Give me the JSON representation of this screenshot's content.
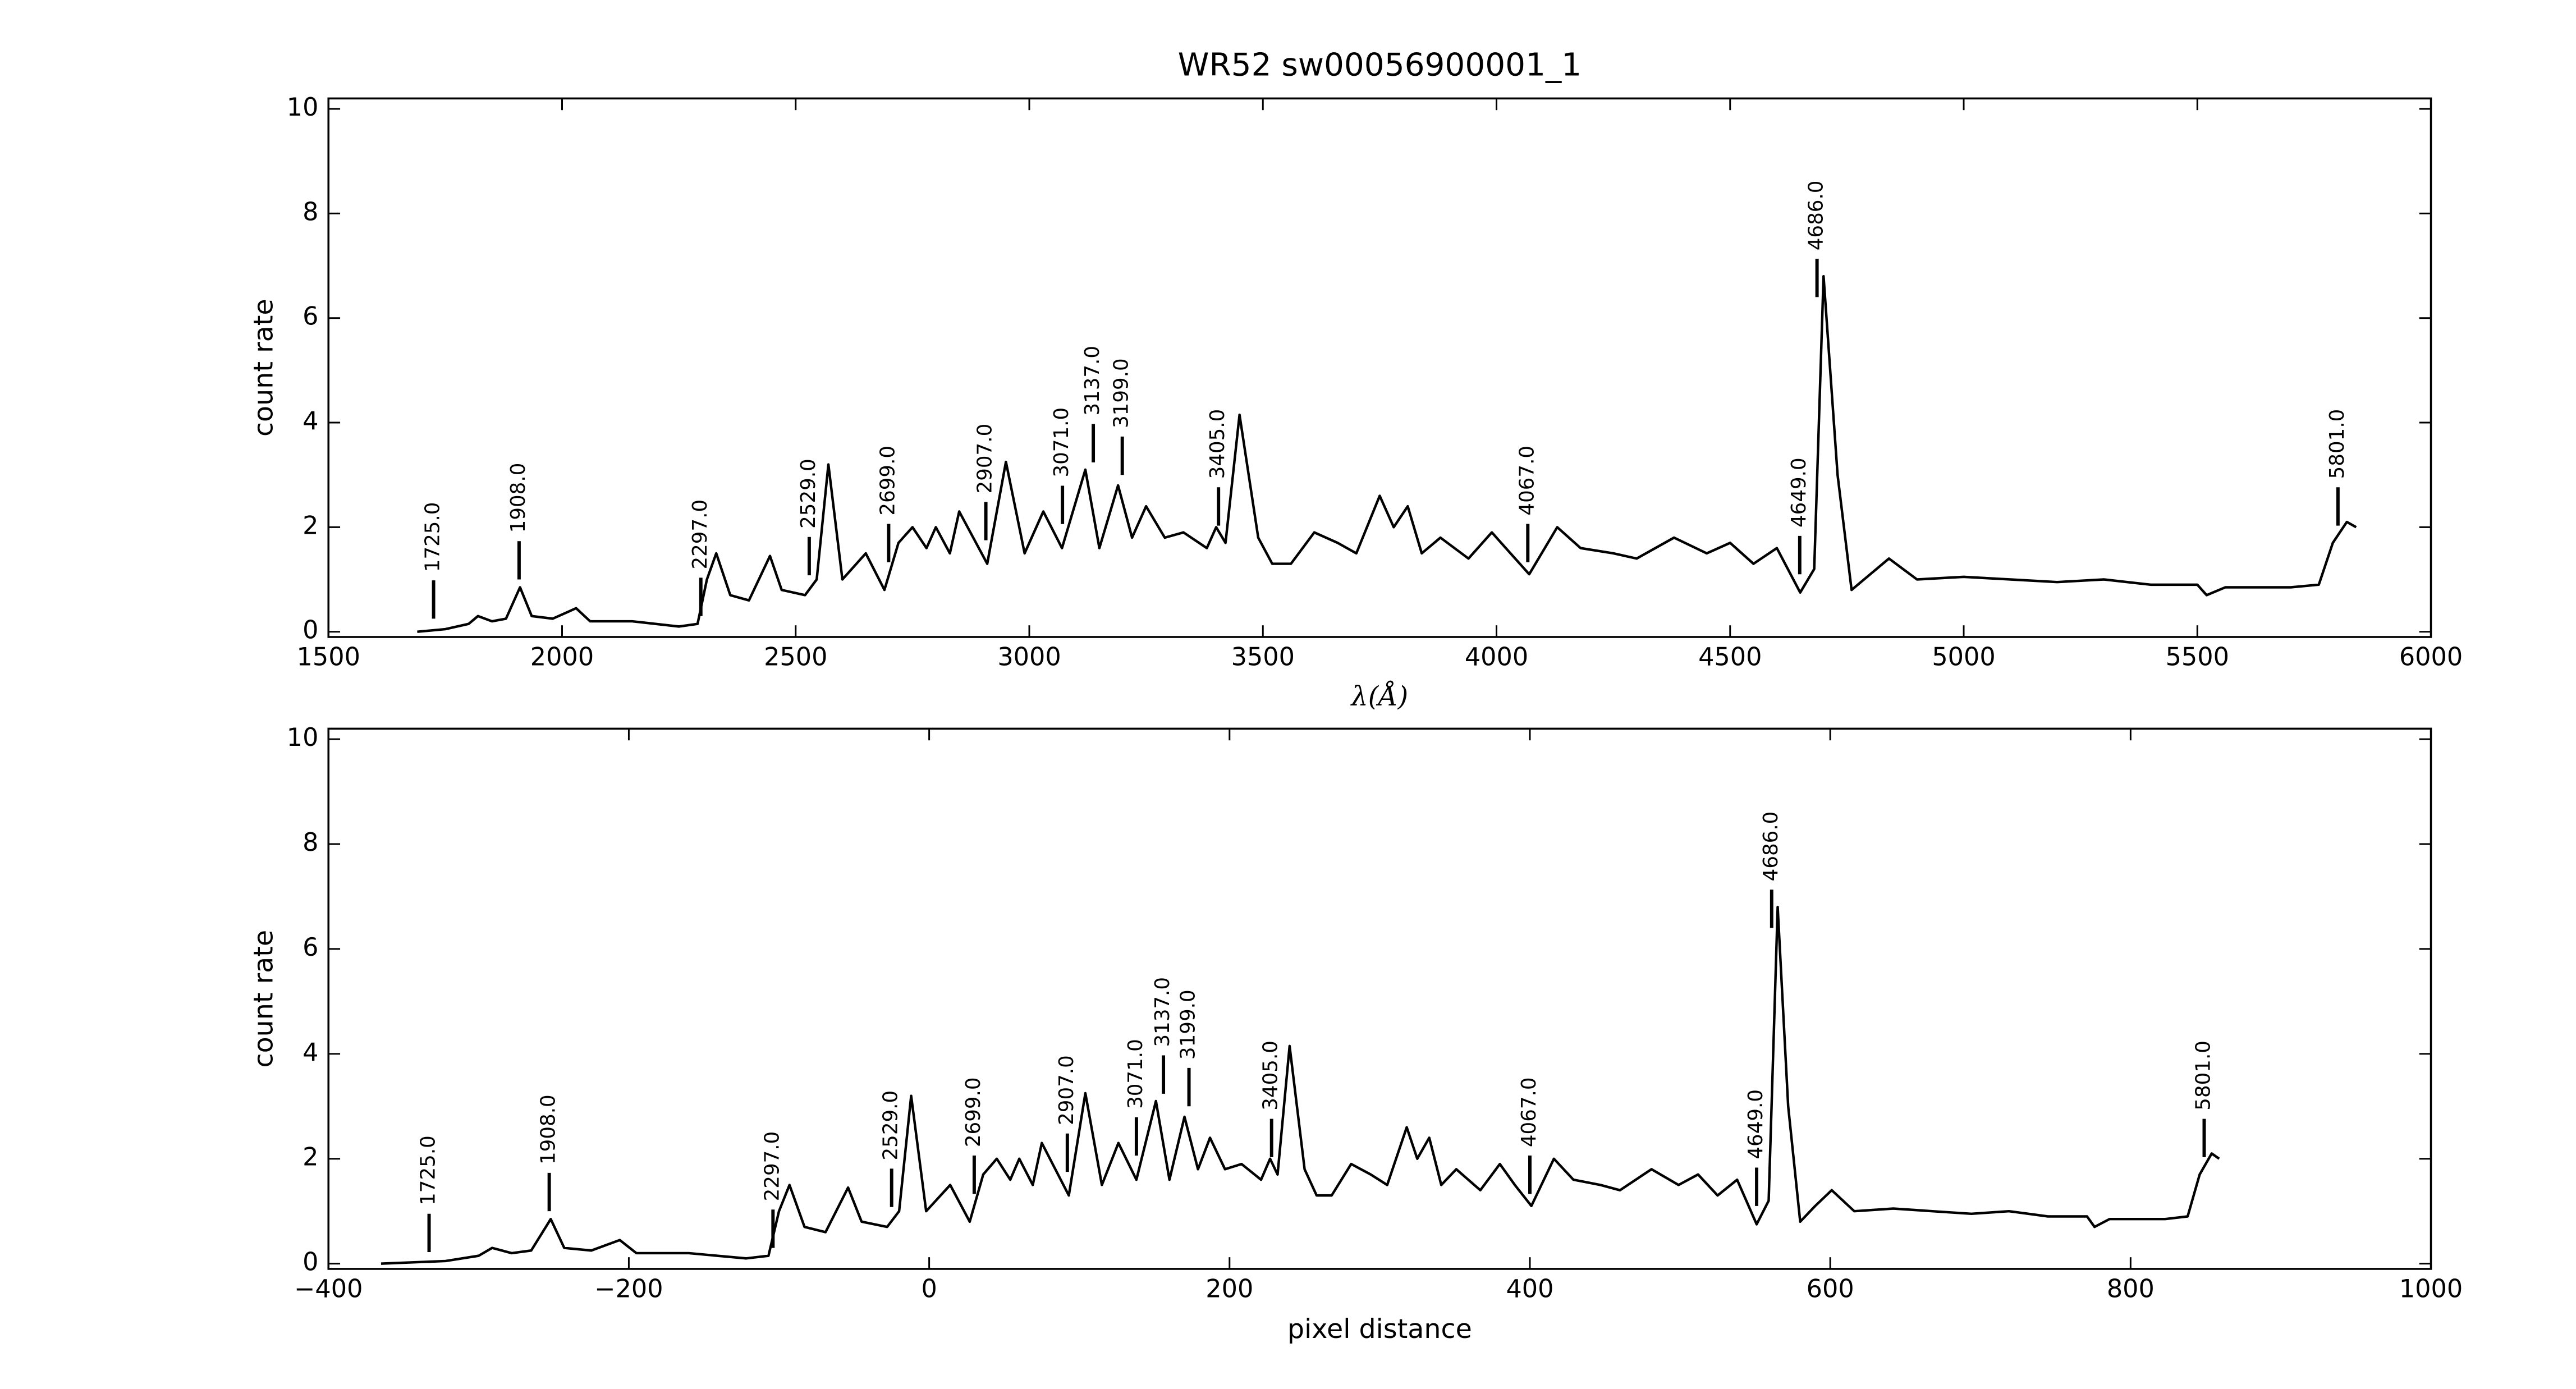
{
  "chart_data": [
    {
      "type": "line",
      "title": "WR52  sw00056900001_1",
      "xlabel": "λ(Å)",
      "ylabel": "count rate",
      "xlim": [
        1500,
        6000
      ],
      "xticks": [
        1500,
        2000,
        2500,
        3000,
        3500,
        4000,
        4500,
        5000,
        5500,
        6000
      ],
      "ylim": [
        -0.1,
        10.2
      ],
      "yticks": [
        0,
        2,
        4,
        6,
        8,
        10
      ],
      "series": [
        {
          "color": "#000000",
          "x": [
            1690,
            1750,
            1800,
            1820,
            1850,
            1880,
            1910,
            1935,
            1980,
            2030,
            2060,
            2150,
            2250,
            2290,
            2310,
            2330,
            2360,
            2400,
            2445,
            2470,
            2520,
            2545,
            2570,
            2600,
            2650,
            2690,
            2720,
            2750,
            2780,
            2800,
            2830,
            2850,
            2880,
            2910,
            2950,
            2990,
            3030,
            3070,
            3120,
            3150,
            3190,
            3220,
            3250,
            3290,
            3330,
            3380,
            3400,
            3420,
            3450,
            3490,
            3520,
            3560,
            3610,
            3660,
            3700,
            3750,
            3780,
            3810,
            3840,
            3880,
            3940,
            3990,
            4030,
            4070,
            4130,
            4180,
            4250,
            4300,
            4380,
            4450,
            4500,
            4550,
            4600,
            4650,
            4680,
            4700,
            4730,
            4760,
            4800,
            4840,
            4900,
            5000,
            5100,
            5200,
            5300,
            5400,
            5500,
            5520,
            5560,
            5700,
            5760,
            5790,
            5820,
            5840
          ],
          "values": [
            0.0,
            0.05,
            0.15,
            0.3,
            0.2,
            0.25,
            0.85,
            0.3,
            0.25,
            0.45,
            0.2,
            0.2,
            0.1,
            0.15,
            1.0,
            1.5,
            0.7,
            0.6,
            1.45,
            0.8,
            0.7,
            1.0,
            3.2,
            1.0,
            1.5,
            0.8,
            1.7,
            2.0,
            1.6,
            2.0,
            1.5,
            2.3,
            1.8,
            1.3,
            3.25,
            1.5,
            2.3,
            1.6,
            3.1,
            1.6,
            2.8,
            1.8,
            2.4,
            1.8,
            1.9,
            1.6,
            2.0,
            1.7,
            4.15,
            1.8,
            1.3,
            1.3,
            1.9,
            1.7,
            1.5,
            2.6,
            2.0,
            2.4,
            1.5,
            1.8,
            1.4,
            1.9,
            1.5,
            1.1,
            2.0,
            1.6,
            1.5,
            1.4,
            1.8,
            1.5,
            1.7,
            1.3,
            1.6,
            0.75,
            1.2,
            6.8,
            3.0,
            0.8,
            1.1,
            1.4,
            1.0,
            1.05,
            1.0,
            0.95,
            1.0,
            0.9,
            0.9,
            0.7,
            0.85,
            0.85,
            0.9,
            1.7,
            2.1,
            2.0
          ]
        }
      ],
      "annotations": [
        {
          "label": "1725.0",
          "x": 1725,
          "y": 0.25
        },
        {
          "label": "1908.0",
          "x": 1908,
          "y": 1.0
        },
        {
          "label": "2297.0",
          "x": 2297,
          "y": 0.3
        },
        {
          "label": "2529.0",
          "x": 2529,
          "y": 1.08
        },
        {
          "label": "2699.0",
          "x": 2699,
          "y": 1.33
        },
        {
          "label": "2907.0",
          "x": 2907,
          "y": 1.75
        },
        {
          "label": "3071.0",
          "x": 3071,
          "y": 2.06
        },
        {
          "label": "3137.0",
          "x": 3137,
          "y": 3.24
        },
        {
          "label": "3199.0",
          "x": 3199,
          "y": 3.0
        },
        {
          "label": "3405.0",
          "x": 3405,
          "y": 2.03
        },
        {
          "label": "4067.0",
          "x": 4067,
          "y": 1.33
        },
        {
          "label": "4649.0",
          "x": 4649,
          "y": 1.1
        },
        {
          "label": "4686.0",
          "x": 4686,
          "y": 6.4
        },
        {
          "label": "5801.0",
          "x": 5801,
          "y": 2.03
        }
      ]
    },
    {
      "type": "line",
      "xlabel": "pixel distance",
      "ylabel": "count rate",
      "xlim": [
        -400,
        1000
      ],
      "xticks": [
        {
          "value": -400,
          "label": "−400"
        },
        {
          "value": -200,
          "label": "−200"
        },
        0,
        200,
        400,
        600,
        800,
        1000
      ],
      "ylim": [
        -0.1,
        10.2
      ],
      "yticks": [
        0,
        2,
        4,
        6,
        8,
        10
      ],
      "series": [
        {
          "color": "#000000",
          "x": [
            -365,
            -322,
            -300,
            -291,
            -278,
            -265,
            -252,
            -243,
            -225,
            -206,
            -195,
            -160,
            -122,
            -107,
            -100,
            -93,
            -83,
            -69,
            -54,
            -45,
            -28,
            -20,
            -12,
            -2,
            14,
            27,
            36,
            45,
            54,
            60,
            69,
            75,
            84,
            93,
            104,
            115,
            126,
            138,
            151,
            160,
            170,
            179,
            187,
            197,
            208,
            221,
            227,
            232,
            240,
            250,
            258,
            268,
            281,
            294,
            305,
            318,
            325,
            333,
            341,
            351,
            367,
            380,
            390,
            401,
            416,
            429,
            447,
            460,
            481,
            499,
            512,
            525,
            538,
            551,
            559,
            565,
            572,
            580,
            590,
            601,
            616,
            642,
            668,
            694,
            719,
            745,
            771,
            776,
            786,
            823,
            838,
            846,
            854,
            859
          ],
          "values": [
            0.0,
            0.05,
            0.15,
            0.3,
            0.2,
            0.25,
            0.85,
            0.3,
            0.25,
            0.45,
            0.2,
            0.2,
            0.1,
            0.15,
            1.0,
            1.5,
            0.7,
            0.6,
            1.45,
            0.8,
            0.7,
            1.0,
            3.2,
            1.0,
            1.5,
            0.8,
            1.7,
            2.0,
            1.6,
            2.0,
            1.5,
            2.3,
            1.8,
            1.3,
            3.25,
            1.5,
            2.3,
            1.6,
            3.1,
            1.6,
            2.8,
            1.8,
            2.4,
            1.8,
            1.9,
            1.6,
            2.0,
            1.7,
            4.15,
            1.8,
            1.3,
            1.3,
            1.9,
            1.7,
            1.5,
            2.6,
            2.0,
            2.4,
            1.5,
            1.8,
            1.4,
            1.9,
            1.5,
            1.1,
            2.0,
            1.6,
            1.5,
            1.4,
            1.8,
            1.5,
            1.7,
            1.3,
            1.6,
            0.75,
            1.2,
            6.8,
            3.0,
            0.8,
            1.1,
            1.4,
            1.0,
            1.05,
            1.0,
            0.95,
            1.0,
            0.9,
            0.9,
            0.7,
            0.85,
            0.85,
            0.9,
            1.7,
            2.1,
            2.0
          ]
        }
      ],
      "annotations": [
        {
          "label": "1725.0",
          "x": -333,
          "y": 0.22
        },
        {
          "label": "1908.0",
          "x": -253,
          "y": 1.0
        },
        {
          "label": "2297.0",
          "x": -104,
          "y": 0.3
        },
        {
          "label": "2529.0",
          "x": -25,
          "y": 1.08
        },
        {
          "label": "2699.0",
          "x": 30,
          "y": 1.33
        },
        {
          "label": "2907.0",
          "x": 92,
          "y": 1.75
        },
        {
          "label": "3071.0",
          "x": 138,
          "y": 2.06
        },
        {
          "label": "3137.0",
          "x": 156,
          "y": 3.24
        },
        {
          "label": "3199.0",
          "x": 173,
          "y": 3.0
        },
        {
          "label": "3405.0",
          "x": 228,
          "y": 2.03
        },
        {
          "label": "4067.0",
          "x": 400,
          "y": 1.33
        },
        {
          "label": "4649.0",
          "x": 551,
          "y": 1.1
        },
        {
          "label": "4686.0",
          "x": 561,
          "y": 6.4
        },
        {
          "label": "5801.0",
          "x": 849,
          "y": 2.03
        }
      ]
    }
  ]
}
